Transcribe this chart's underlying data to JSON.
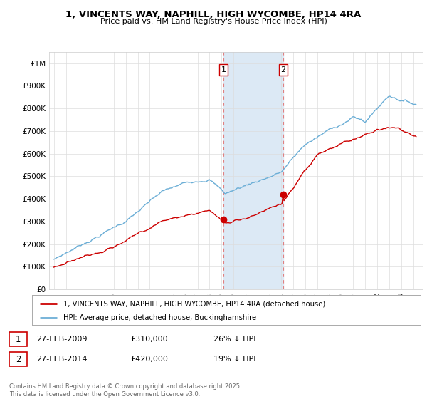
{
  "title": "1, VINCENTS WAY, NAPHILL, HIGH WYCOMBE, HP14 4RA",
  "subtitle": "Price paid vs. HM Land Registry's House Price Index (HPI)",
  "ylabel_ticks": [
    "£0",
    "£100K",
    "£200K",
    "£300K",
    "£400K",
    "£500K",
    "£600K",
    "£700K",
    "£800K",
    "£900K",
    "£1M"
  ],
  "ytick_values": [
    0,
    100000,
    200000,
    300000,
    400000,
    500000,
    600000,
    700000,
    800000,
    900000,
    1000000
  ],
  "ylim": [
    0,
    1050000
  ],
  "xlim_start": 1994.6,
  "xlim_end": 2025.8,
  "hpi_color": "#6baed6",
  "price_color": "#cc0000",
  "marker1_date": 2009.15,
  "marker2_date": 2014.15,
  "marker1_price": 310000,
  "marker2_price": 420000,
  "annotation1": "27-FEB-2009",
  "annotation1_price": "£310,000",
  "annotation1_hpi": "26% ↓ HPI",
  "annotation2": "27-FEB-2014",
  "annotation2_price": "£420,000",
  "annotation2_hpi": "19% ↓ HPI",
  "legend_label_price": "1, VINCENTS WAY, NAPHILL, HIGH WYCOMBE, HP14 4RA (detached house)",
  "legend_label_hpi": "HPI: Average price, detached house, Buckinghamshire",
  "footer": "Contains HM Land Registry data © Crown copyright and database right 2025.\nThis data is licensed under the Open Government Licence v3.0.",
  "background_color": "#ffffff",
  "grid_color": "#dddddd",
  "highlight_color": "#dce9f5"
}
